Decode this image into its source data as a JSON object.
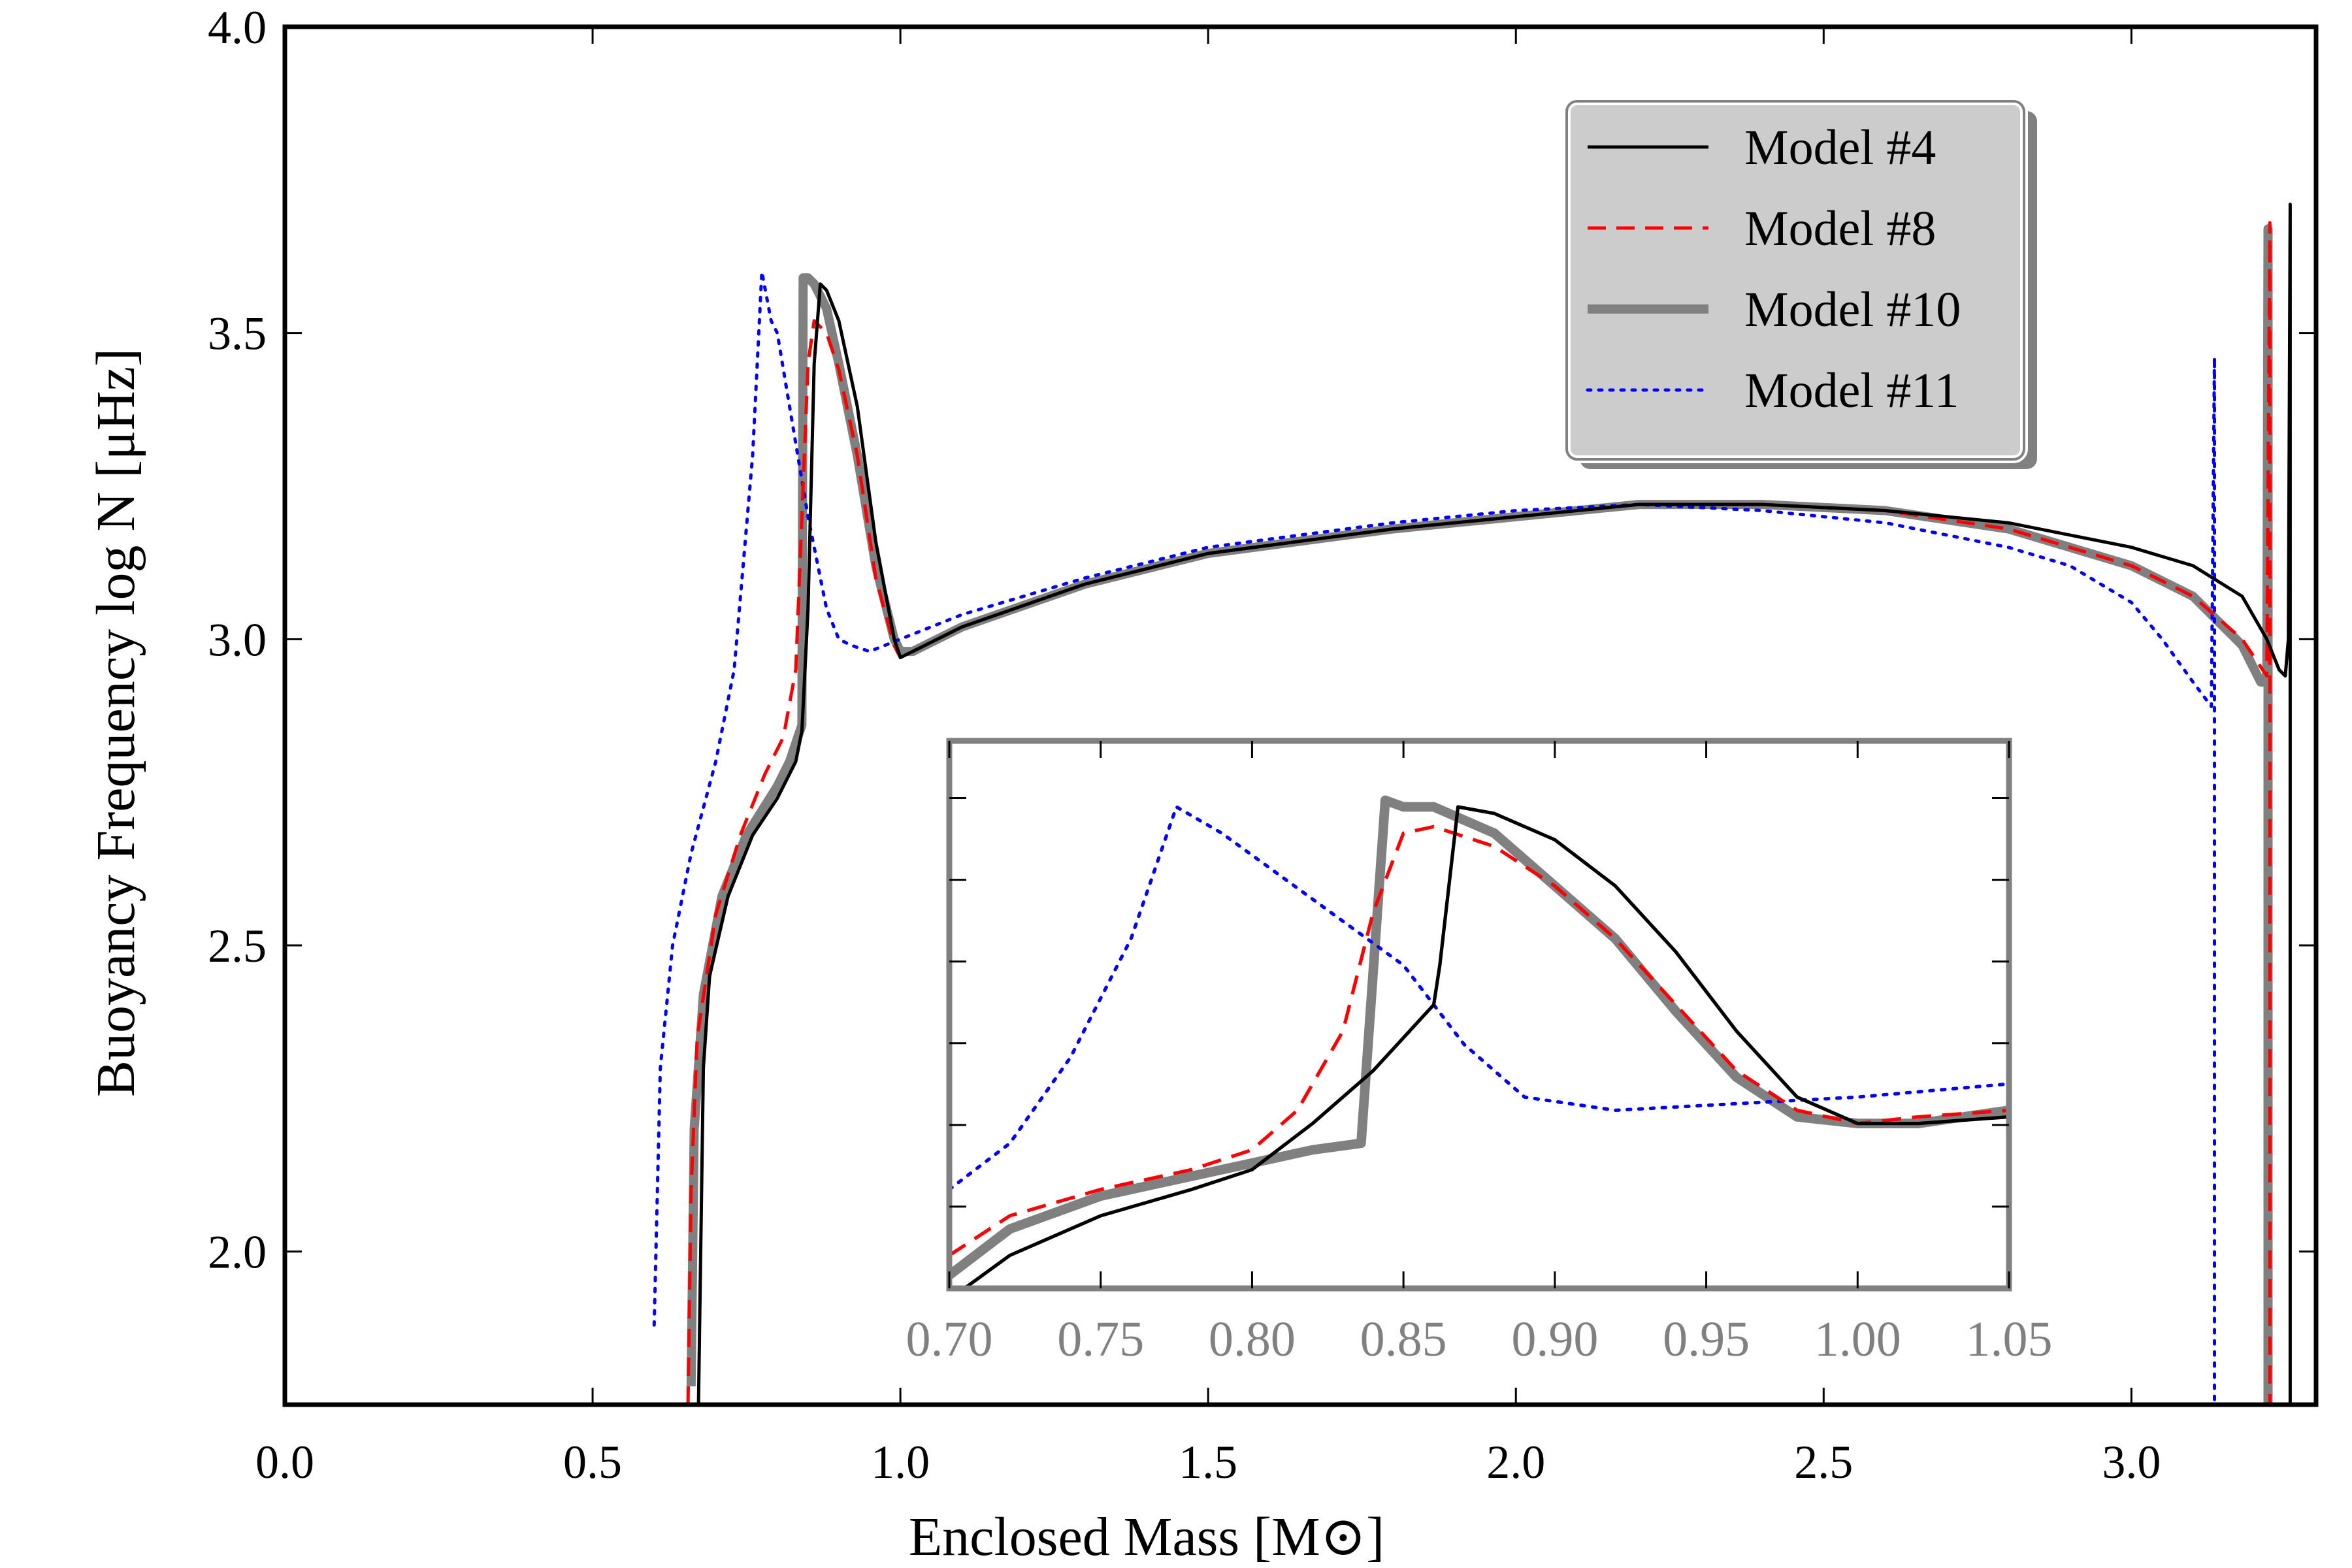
{
  "chart_data": {
    "type": "line",
    "main": {
      "xlabel": "Enclosed Mass [M⊙]",
      "ylabel": "Buoyancy Frequency log N [μHz]",
      "xlim": [
        0.0,
        3.3
      ],
      "ylim": [
        1.75,
        4.0
      ],
      "xticks": [
        0.0,
        0.5,
        1.0,
        1.5,
        2.0,
        2.5,
        3.0
      ],
      "xtick_labels": [
        "0.0",
        "0.5",
        "1.0",
        "1.5",
        "2.0",
        "2.5",
        "3.0"
      ],
      "yticks": [
        2.0,
        2.5,
        3.0,
        3.5,
        4.0
      ],
      "ytick_labels": [
        "2.0",
        "2.5",
        "3.0",
        "3.5",
        "4.0"
      ],
      "grid": false,
      "legend_position": "top-right",
      "series": [
        {
          "name": "Model #4",
          "color": "#000000",
          "style": "solid",
          "points": [
            [
              0.672,
              1.75
            ],
            [
              0.68,
              2.3
            ],
            [
              0.69,
              2.45
            ],
            [
              0.72,
              2.58
            ],
            [
              0.76,
              2.68
            ],
            [
              0.8,
              2.74
            ],
            [
              0.83,
              2.8
            ],
            [
              0.84,
              2.85
            ],
            [
              0.85,
              3.05
            ],
            [
              0.86,
              3.45
            ],
            [
              0.87,
              3.58
            ],
            [
              0.88,
              3.57
            ],
            [
              0.9,
              3.52
            ],
            [
              0.93,
              3.38
            ],
            [
              0.96,
              3.16
            ],
            [
              0.99,
              3.0
            ],
            [
              1.0,
              2.97
            ],
            [
              1.02,
              2.98
            ],
            [
              1.1,
              3.02
            ],
            [
              1.3,
              3.09
            ],
            [
              1.5,
              3.14
            ],
            [
              1.8,
              3.18
            ],
            [
              2.0,
              3.2
            ],
            [
              2.2,
              3.22
            ],
            [
              2.4,
              3.22
            ],
            [
              2.6,
              3.21
            ],
            [
              2.8,
              3.19
            ],
            [
              3.0,
              3.15
            ],
            [
              3.1,
              3.12
            ],
            [
              3.18,
              3.07
            ],
            [
              3.22,
              3.0
            ],
            [
              3.24,
              2.95
            ],
            [
              3.25,
              2.94
            ],
            [
              3.255,
              3.0
            ],
            [
              3.258,
              3.71
            ],
            [
              3.258,
              1.75
            ]
          ]
        },
        {
          "name": "Model #8",
          "color": "#ff0000",
          "style": "dashed",
          "points": [
            [
              0.655,
              1.75
            ],
            [
              0.66,
              2.1
            ],
            [
              0.67,
              2.35
            ],
            [
              0.7,
              2.55
            ],
            [
              0.74,
              2.68
            ],
            [
              0.78,
              2.78
            ],
            [
              0.81,
              2.84
            ],
            [
              0.83,
              2.95
            ],
            [
              0.84,
              3.2
            ],
            [
              0.85,
              3.45
            ],
            [
              0.86,
              3.52
            ],
            [
              0.88,
              3.5
            ],
            [
              0.9,
              3.44
            ],
            [
              0.93,
              3.3
            ],
            [
              0.96,
              3.1
            ],
            [
              0.99,
              2.99
            ],
            [
              1.0,
              2.97
            ],
            [
              1.02,
              2.98
            ],
            [
              1.1,
              3.02
            ],
            [
              1.3,
              3.09
            ],
            [
              1.5,
              3.14
            ],
            [
              1.8,
              3.18
            ],
            [
              2.0,
              3.2
            ],
            [
              2.2,
              3.22
            ],
            [
              2.4,
              3.22
            ],
            [
              2.6,
              3.21
            ],
            [
              2.8,
              3.18
            ],
            [
              3.0,
              3.12
            ],
            [
              3.1,
              3.07
            ],
            [
              3.18,
              3.0
            ],
            [
              3.22,
              2.94
            ],
            [
              3.225,
              3.68
            ],
            [
              3.225,
              1.75
            ]
          ]
        },
        {
          "name": "Model #10",
          "color": "#808080",
          "style": "solid-thick",
          "points": [
            [
              0.66,
              1.78
            ],
            [
              0.665,
              2.2
            ],
            [
              0.68,
              2.42
            ],
            [
              0.71,
              2.58
            ],
            [
              0.75,
              2.68
            ],
            [
              0.8,
              2.76
            ],
            [
              0.82,
              2.8
            ],
            [
              0.84,
              2.86
            ],
            [
              0.842,
              3.59
            ],
            [
              0.85,
              3.59
            ],
            [
              0.86,
              3.58
            ],
            [
              0.88,
              3.54
            ],
            [
              0.9,
              3.45
            ],
            [
              0.93,
              3.3
            ],
            [
              0.96,
              3.12
            ],
            [
              0.99,
              3.0
            ],
            [
              1.0,
              2.98
            ],
            [
              1.02,
              2.98
            ],
            [
              1.1,
              3.02
            ],
            [
              1.3,
              3.09
            ],
            [
              1.5,
              3.14
            ],
            [
              1.8,
              3.18
            ],
            [
              2.0,
              3.2
            ],
            [
              2.2,
              3.22
            ],
            [
              2.4,
              3.22
            ],
            [
              2.6,
              3.21
            ],
            [
              2.8,
              3.18
            ],
            [
              3.0,
              3.12
            ],
            [
              3.1,
              3.07
            ],
            [
              3.18,
              2.99
            ],
            [
              3.21,
              2.93
            ],
            [
              3.22,
              2.93
            ],
            [
              3.222,
              3.67
            ],
            [
              3.222,
              1.75
            ]
          ]
        },
        {
          "name": "Model #11",
          "color": "#0000ff",
          "style": "dotted",
          "points": [
            [
              0.6,
              1.88
            ],
            [
              0.61,
              2.3
            ],
            [
              0.63,
              2.5
            ],
            [
              0.66,
              2.65
            ],
            [
              0.7,
              2.8
            ],
            [
              0.73,
              2.95
            ],
            [
              0.76,
              3.3
            ],
            [
              0.775,
              3.6
            ],
            [
              0.79,
              3.52
            ],
            [
              0.8,
              3.5
            ],
            [
              0.82,
              3.38
            ],
            [
              0.85,
              3.2
            ],
            [
              0.88,
              3.05
            ],
            [
              0.9,
              3.0
            ],
            [
              0.92,
              2.99
            ],
            [
              0.95,
              2.98
            ],
            [
              1.0,
              3.0
            ],
            [
              1.1,
              3.04
            ],
            [
              1.3,
              3.1
            ],
            [
              1.5,
              3.15
            ],
            [
              1.8,
              3.19
            ],
            [
              2.0,
              3.21
            ],
            [
              2.2,
              3.22
            ],
            [
              2.4,
              3.21
            ],
            [
              2.6,
              3.19
            ],
            [
              2.8,
              3.15
            ],
            [
              2.9,
              3.12
            ],
            [
              3.0,
              3.06
            ],
            [
              3.05,
              3.0
            ],
            [
              3.1,
              2.93
            ],
            [
              3.13,
              2.89
            ],
            [
              3.135,
              3.46
            ],
            [
              3.135,
              1.75
            ]
          ]
        }
      ]
    },
    "inset": {
      "xlim": [
        0.7,
        1.05
      ],
      "ylim": [
        2.85,
        3.68
      ],
      "xticks": [
        0.7,
        0.75,
        0.8,
        0.85,
        0.9,
        0.95,
        1.0,
        1.05
      ],
      "xtick_labels": [
        "0.70",
        "0.75",
        "0.80",
        "0.85",
        "0.90",
        "0.95",
        "1.00",
        "1.05"
      ],
      "ytick_count": 6,
      "series": [
        {
          "name": "Model #4",
          "color": "#000000",
          "style": "solid",
          "points": [
            [
              0.705,
              2.85
            ],
            [
              0.72,
              2.9
            ],
            [
              0.75,
              2.96
            ],
            [
              0.78,
              3.0
            ],
            [
              0.8,
              3.03
            ],
            [
              0.82,
              3.1
            ],
            [
              0.84,
              3.18
            ],
            [
              0.86,
              3.28
            ],
            [
              0.862,
              3.34
            ],
            [
              0.868,
              3.58
            ],
            [
              0.88,
              3.57
            ],
            [
              0.9,
              3.53
            ],
            [
              0.92,
              3.46
            ],
            [
              0.94,
              3.36
            ],
            [
              0.96,
              3.24
            ],
            [
              0.98,
              3.14
            ],
            [
              1.0,
              3.1
            ],
            [
              1.02,
              3.1
            ],
            [
              1.05,
              3.11
            ]
          ]
        },
        {
          "name": "Model #8",
          "color": "#ff0000",
          "style": "dashed",
          "points": [
            [
              0.7,
              2.9
            ],
            [
              0.72,
              2.96
            ],
            [
              0.75,
              3.0
            ],
            [
              0.78,
              3.03
            ],
            [
              0.8,
              3.06
            ],
            [
              0.815,
              3.12
            ],
            [
              0.83,
              3.24
            ],
            [
              0.84,
              3.42
            ],
            [
              0.85,
              3.54
            ],
            [
              0.86,
              3.55
            ],
            [
              0.88,
              3.52
            ],
            [
              0.9,
              3.46
            ],
            [
              0.92,
              3.38
            ],
            [
              0.94,
              3.28
            ],
            [
              0.96,
              3.18
            ],
            [
              0.98,
              3.12
            ],
            [
              1.0,
              3.1
            ],
            [
              1.02,
              3.11
            ],
            [
              1.05,
              3.12
            ]
          ]
        },
        {
          "name": "Model #10",
          "color": "#808080",
          "style": "solid-thick",
          "points": [
            [
              0.7,
              2.87
            ],
            [
              0.72,
              2.94
            ],
            [
              0.75,
              2.99
            ],
            [
              0.78,
              3.02
            ],
            [
              0.8,
              3.04
            ],
            [
              0.82,
              3.06
            ],
            [
              0.836,
              3.07
            ],
            [
              0.844,
              3.59
            ],
            [
              0.85,
              3.58
            ],
            [
              0.86,
              3.58
            ],
            [
              0.88,
              3.54
            ],
            [
              0.9,
              3.46
            ],
            [
              0.92,
              3.38
            ],
            [
              0.94,
              3.27
            ],
            [
              0.96,
              3.17
            ],
            [
              0.98,
              3.11
            ],
            [
              1.0,
              3.1
            ],
            [
              1.02,
              3.1
            ],
            [
              1.05,
              3.12
            ]
          ]
        },
        {
          "name": "Model #11",
          "color": "#0000ff",
          "style": "dotted",
          "points": [
            [
              0.7,
              3.0
            ],
            [
              0.72,
              3.07
            ],
            [
              0.74,
              3.2
            ],
            [
              0.76,
              3.38
            ],
            [
              0.775,
              3.58
            ],
            [
              0.79,
              3.54
            ],
            [
              0.82,
              3.44
            ],
            [
              0.85,
              3.34
            ],
            [
              0.87,
              3.22
            ],
            [
              0.89,
              3.14
            ],
            [
              0.92,
              3.12
            ],
            [
              0.96,
              3.13
            ],
            [
              1.0,
              3.14
            ],
            [
              1.05,
              3.16
            ]
          ]
        }
      ]
    }
  }
}
